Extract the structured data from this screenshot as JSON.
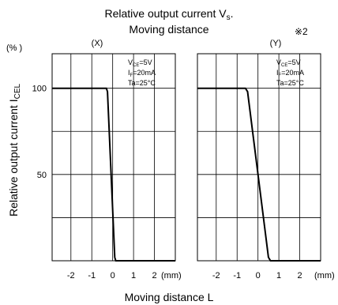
{
  "title": {
    "line1": "Relative output current V",
    "line1_sub": "s",
    "line1_end": ".",
    "line2": "Moving distance",
    "note": "※2"
  },
  "ylabel": {
    "main": "Relative output current I",
    "sub": "CEL"
  },
  "yunit": "(% )",
  "xlabel": "Moving distance  L",
  "xunit": "(mm)",
  "conditions": {
    "vce": {
      "main": "V",
      "sub": "CE",
      "rest": "=5V"
    },
    "if": {
      "main": "I",
      "sub": "F",
      "rest": "=20mA"
    },
    "ta": "Ta=25°C"
  },
  "chart_data": [
    {
      "type": "line",
      "panel_label": "(X)",
      "x_ticks": [
        "-2",
        "-1",
        "0",
        "1",
        "2"
      ],
      "y_ticks": [
        "100",
        "50"
      ],
      "xlim": [
        -2.9,
        3.0
      ],
      "ylim": [
        0,
        120
      ],
      "grid": true,
      "series": [
        {
          "x": [
            -2.9,
            -0.3,
            -0.25,
            0.1,
            0.15,
            3.0
          ],
          "y": [
            100,
            100,
            98,
            2,
            0,
            0
          ]
        }
      ]
    },
    {
      "type": "line",
      "panel_label": "(Y)",
      "x_ticks": [
        "-2",
        "-1",
        "0",
        "1",
        "2"
      ],
      "y_ticks": [
        "100",
        "50"
      ],
      "xlim": [
        -2.9,
        3.0
      ],
      "ylim": [
        0,
        120
      ],
      "grid": true,
      "series": [
        {
          "x": [
            -2.9,
            -0.6,
            -0.5,
            0.5,
            0.6,
            3.0
          ],
          "y": [
            100,
            100,
            98,
            2,
            0,
            0
          ]
        }
      ]
    }
  ]
}
